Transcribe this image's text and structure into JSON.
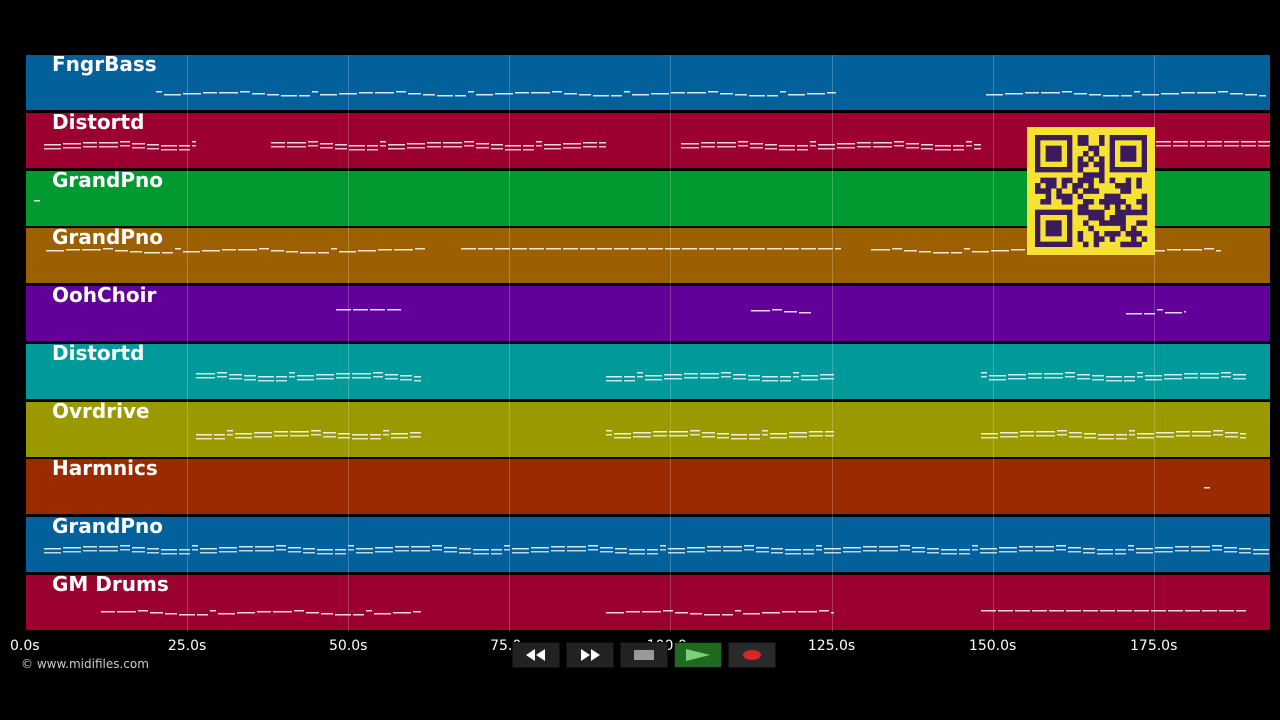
{
  "tracks": [
    {
      "label": "FngrBass",
      "color": "#02609a"
    },
    {
      "label": "Distortd",
      "color": "#9c0030"
    },
    {
      "label": "GrandPno",
      "color": "#009a30"
    },
    {
      "label": "GrandPno",
      "color": "#9c6000"
    },
    {
      "label": "OohChoir",
      "color": "#62009a"
    },
    {
      "label": "Distortd",
      "color": "#009a9a"
    },
    {
      "label": "Ovrdrive",
      "color": "#9a9a00"
    },
    {
      "label": "Harmnics",
      "color": "#9a2a00"
    },
    {
      "label": "GrandPno",
      "color": "#02609a"
    },
    {
      "label": "GM Drums",
      "color": "#9c0030"
    }
  ],
  "timeline": {
    "ticks": [
      "0.0s",
      "25.0s",
      "50.0s",
      "75.0s",
      "100.0s",
      "125.0s",
      "150.0s",
      "175.0s"
    ]
  },
  "copyright": "© www.midifiles.com",
  "transport": {
    "buttons": [
      "rewind-icon",
      "fast-forward-icon",
      "stop-icon",
      "play-icon",
      "record-icon"
    ]
  },
  "qr_code": "qr-code"
}
